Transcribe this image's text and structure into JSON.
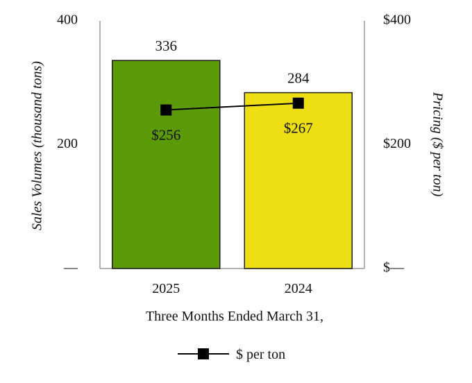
{
  "chart_data": {
    "type": "bar",
    "xlabel": "Three Months Ended March 31,",
    "categories": [
      "2025",
      "2024"
    ],
    "series": [
      {
        "name": "Sales Volumes",
        "axis": "left",
        "values": [
          336,
          284
        ],
        "labels": [
          "336",
          "284"
        ],
        "colors": [
          "#5c9a0a",
          "#eedf14"
        ]
      },
      {
        "name": "$ per ton",
        "type": "line",
        "axis": "right",
        "values": [
          256,
          267
        ],
        "labels": [
          "$256",
          "$267"
        ],
        "color": "#000000"
      }
    ],
    "y_left": {
      "label": "Sales Volumes (thousand tons)",
      "range": [
        0,
        400
      ],
      "ticks": [
        "—",
        "200",
        "400"
      ]
    },
    "y_right": {
      "label": "Pricing ($ per ton)",
      "range": [
        0,
        400
      ],
      "ticks": [
        "$—",
        "$200",
        "$400"
      ]
    },
    "grid": false,
    "legend": {
      "position": "bottom",
      "entries": [
        "$ per ton"
      ]
    }
  }
}
